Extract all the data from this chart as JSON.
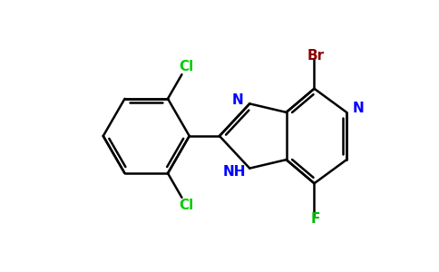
{
  "background_color": "#ffffff",
  "bond_color": "#000000",
  "cl_color": "#00cc00",
  "n_color": "#0000ff",
  "br_color": "#8b0000",
  "f_color": "#00bb00",
  "line_width": 1.8,
  "font_size": 11,
  "figsize": [
    4.84,
    3.0
  ],
  "dpi": 100,
  "xlim": [
    0,
    10
  ],
  "ylim": [
    0,
    6.2
  ]
}
